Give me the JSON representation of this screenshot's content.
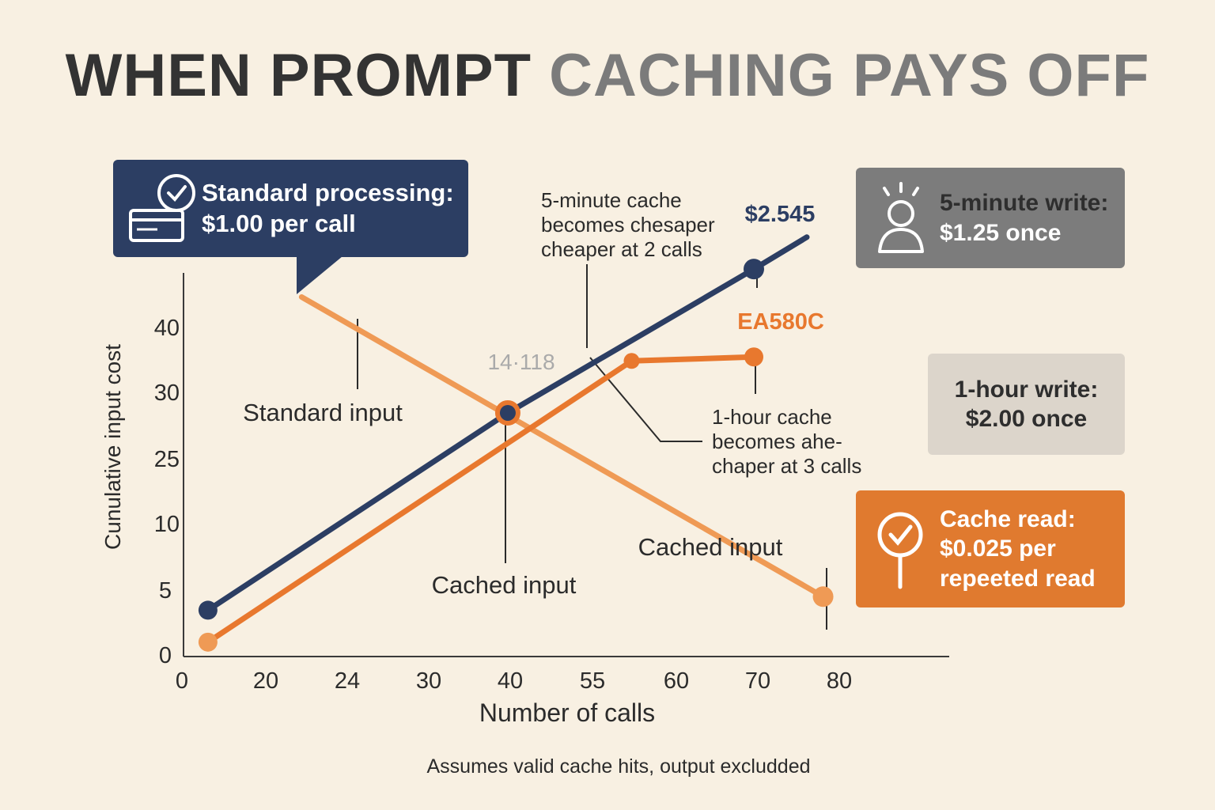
{
  "title": {
    "part1": "WHEN PROMPT",
    "part2": "CACHING PAYS OFF"
  },
  "boxes": {
    "standard": {
      "line1": "Standard processing:",
      "line2": "$1.00 per call"
    },
    "five_min": {
      "line1": "5-minute write:",
      "line2": "$1.25 once"
    },
    "one_hour": {
      "line1": "1-hour write:",
      "line2": "$2.00 once"
    },
    "cache_read": {
      "line1": "Cache read:",
      "line2": "$0.025 per",
      "line3": "repeeted read"
    }
  },
  "footnote": "Assumes valid cache hits,  output excludded",
  "colors": {
    "navy": "#2c3e63",
    "orange": "#e8782e",
    "light_orange": "#ef9a55",
    "grey": "#7c7c7c",
    "background": "#f8f0e2"
  },
  "icons": {
    "standard": "card-check-icon",
    "five_min": "person-icon",
    "cache_read": "magnifier-check-icon"
  },
  "chart_data": {
    "type": "line",
    "xlabel": "Number of calls",
    "ylabel": "Cunulative input cost",
    "x_ticks": [
      "0",
      "20",
      "24",
      "30",
      "40",
      "55",
      "60",
      "70",
      "80"
    ],
    "y_ticks": [
      "0",
      "5",
      "10",
      "25",
      "30",
      "40"
    ],
    "series": [
      {
        "name": "Standard input",
        "color": "#2c3e63",
        "points": [
          [
            3,
            5.8
          ],
          [
            39.8,
            30.5
          ],
          [
            70,
            48.5
          ]
        ],
        "extends_to": [
          76.5,
          52.5
        ],
        "point_label": "$2.545"
      },
      {
        "name": "Cached input",
        "color": "#e8782e",
        "points": [
          [
            3,
            1.8
          ],
          [
            55,
            37
          ],
          [
            70,
            37.5
          ]
        ],
        "point_label": "EA580C"
      },
      {
        "name": "",
        "color": "#ef9a55",
        "points": [
          [
            39.8,
            30.5
          ],
          [
            78.5,
            7.5
          ]
        ],
        "start": [
          14.5,
          45
        ]
      }
    ],
    "markers": [
      {
        "label": "14·118",
        "x": 39.8,
        "y": 30.5
      }
    ],
    "annotations": [
      {
        "lines": [
          "5-minute cache",
          "becomes chesaper",
          "cheaper at 2 calls"
        ]
      },
      {
        "lines": [
          "1-hour cache",
          "becomes ahe-",
          "chaper at 3 calls"
        ]
      }
    ],
    "series_labels": [
      "Standard input",
      "Cached input",
      "Cached input"
    ]
  }
}
